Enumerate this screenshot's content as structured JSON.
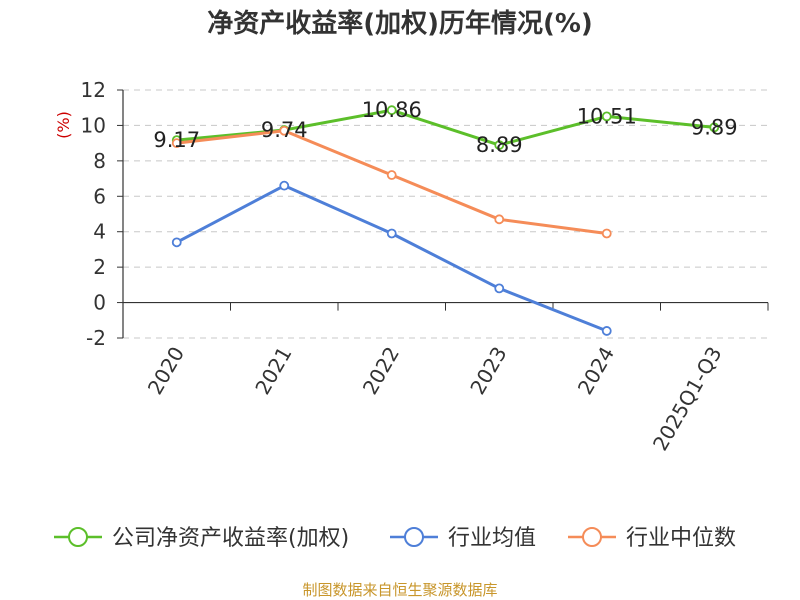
{
  "chart_data": {
    "type": "line",
    "title": "净资产收益率(加权)历年情况(%)",
    "ylabel": "(%)",
    "xlabel": "",
    "categories": [
      "2020",
      "2021",
      "2022",
      "2023",
      "2024",
      "2025Q1-Q3"
    ],
    "ylim": [
      -2,
      12
    ],
    "yticks": [
      -2,
      0,
      2,
      4,
      6,
      8,
      10,
      12
    ],
    "grid": true,
    "legend_position": "bottom",
    "series": [
      {
        "name": "公司净资产收益率(加权)",
        "color": "#5cbf2a",
        "values": [
          9.17,
          9.74,
          10.86,
          8.89,
          10.51,
          9.89
        ],
        "labels": [
          "9.17",
          "9.74",
          "10.86",
          "8.89",
          "10.51",
          "9.89"
        ]
      },
      {
        "name": "行业均值",
        "color": "#4e7fd8",
        "values": [
          3.4,
          6.6,
          3.9,
          0.8,
          -1.6,
          null
        ]
      },
      {
        "name": "行业中位数",
        "color": "#f58c58",
        "values": [
          9.0,
          9.7,
          7.2,
          4.7,
          3.9,
          null
        ]
      }
    ]
  },
  "source": "制图数据来自恒生聚源数据库"
}
